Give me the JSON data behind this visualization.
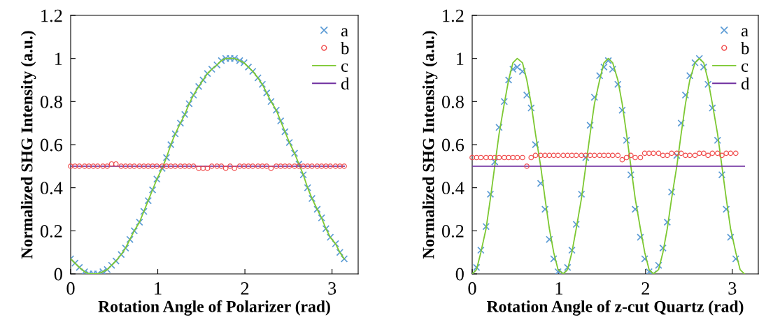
{
  "chart_data": [
    {
      "type": "scatter",
      "xlabel": "Rotation Angle of Polarizer (rad)",
      "ylabel": "Normalized SHG Intensity (a.u.)",
      "xlim": [
        0,
        3.3
      ],
      "ylim": [
        0,
        1.2
      ],
      "xticks": [
        0,
        1,
        2,
        3
      ],
      "yticks": [
        0,
        0.2,
        0.4,
        0.6,
        0.8,
        1,
        1.2
      ],
      "grid": false,
      "legend": "top right",
      "x": [
        0,
        0.05,
        0.1,
        0.16,
        0.21,
        0.26,
        0.31,
        0.37,
        0.42,
        0.47,
        0.52,
        0.58,
        0.63,
        0.68,
        0.73,
        0.79,
        0.84,
        0.89,
        0.94,
        0.99,
        1.05,
        1.1,
        1.15,
        1.2,
        1.26,
        1.31,
        1.36,
        1.41,
        1.47,
        1.52,
        1.57,
        1.62,
        1.68,
        1.73,
        1.78,
        1.83,
        1.88,
        1.94,
        1.99,
        2.04,
        2.09,
        2.15,
        2.2,
        2.25,
        2.3,
        2.36,
        2.41,
        2.46,
        2.51,
        2.57,
        2.62,
        2.67,
        2.72,
        2.77,
        2.83,
        2.88,
        2.93,
        2.98,
        3.04,
        3.09,
        3.14
      ],
      "series": [
        {
          "name": "a",
          "marker": "cross",
          "color": "#5b9bd5",
          "values": [
            0.07,
            0.05,
            0.03,
            0.01,
            0.0,
            0.0,
            0.0,
            0.01,
            0.02,
            0.04,
            0.06,
            0.09,
            0.12,
            0.16,
            0.2,
            0.24,
            0.29,
            0.34,
            0.39,
            0.44,
            0.49,
            0.54,
            0.6,
            0.65,
            0.7,
            0.74,
            0.79,
            0.83,
            0.87,
            0.9,
            0.93,
            0.95,
            0.97,
            0.99,
            1.0,
            1.0,
            1.0,
            0.99,
            0.98,
            0.96,
            0.94,
            0.91,
            0.88,
            0.84,
            0.8,
            0.76,
            0.71,
            0.66,
            0.61,
            0.56,
            0.51,
            0.46,
            0.4,
            0.35,
            0.3,
            0.26,
            0.21,
            0.17,
            0.14,
            0.1,
            0.07
          ]
        },
        {
          "name": "b",
          "marker": "circle",
          "color": "#f04848",
          "values": [
            0.5,
            0.5,
            0.5,
            0.5,
            0.5,
            0.5,
            0.5,
            0.5,
            0.5,
            0.51,
            0.51,
            0.5,
            0.5,
            0.5,
            0.5,
            0.5,
            0.5,
            0.5,
            0.5,
            0.5,
            0.5,
            0.5,
            0.5,
            0.5,
            0.5,
            0.5,
            0.5,
            0.5,
            0.49,
            0.49,
            0.49,
            0.5,
            0.5,
            0.5,
            0.49,
            0.5,
            0.49,
            0.5,
            0.5,
            0.5,
            0.5,
            0.5,
            0.5,
            0.5,
            0.49,
            0.5,
            0.5,
            0.5,
            0.5,
            0.5,
            0.5,
            0.5,
            0.5,
            0.5,
            0.5,
            0.5,
            0.5,
            0.5,
            0.5,
            0.5,
            0.5
          ]
        },
        {
          "name": "c",
          "type": "line",
          "marker": "none",
          "line_style": "solid",
          "color": "#7dc832",
          "values": [
            0.07,
            0.05,
            0.03,
            0.01,
            0.0,
            0.0,
            0.0,
            0.01,
            0.02,
            0.04,
            0.06,
            0.09,
            0.12,
            0.16,
            0.2,
            0.24,
            0.29,
            0.34,
            0.39,
            0.44,
            0.49,
            0.54,
            0.6,
            0.65,
            0.7,
            0.74,
            0.79,
            0.83,
            0.87,
            0.9,
            0.93,
            0.95,
            0.97,
            0.99,
            1.0,
            1.0,
            1.0,
            0.99,
            0.98,
            0.96,
            0.94,
            0.91,
            0.88,
            0.84,
            0.8,
            0.76,
            0.71,
            0.66,
            0.61,
            0.56,
            0.51,
            0.46,
            0.4,
            0.35,
            0.3,
            0.26,
            0.21,
            0.17,
            0.14,
            0.1,
            0.07
          ]
        },
        {
          "name": "d",
          "type": "line",
          "marker": "none",
          "line_style": "solid",
          "color": "#7030a0",
          "x": [
            0,
            3.14
          ],
          "values": [
            0.5,
            0.5
          ]
        }
      ]
    },
    {
      "type": "scatter",
      "xlabel": "Rotation Angle of z-cut Quartz (rad)",
      "ylabel": "Normalized SHG Intensity (a.u.)",
      "xlim": [
        0,
        3.3
      ],
      "ylim": [
        0,
        1.2
      ],
      "xticks": [
        0,
        1,
        2,
        3
      ],
      "yticks": [
        0,
        0.2,
        0.4,
        0.6,
        0.8,
        1,
        1.2
      ],
      "grid": false,
      "legend": "top right",
      "x": [
        0,
        0.05,
        0.1,
        0.16,
        0.21,
        0.26,
        0.31,
        0.37,
        0.42,
        0.47,
        0.52,
        0.58,
        0.63,
        0.68,
        0.73,
        0.79,
        0.84,
        0.89,
        0.94,
        0.99,
        1.05,
        1.1,
        1.15,
        1.2,
        1.26,
        1.31,
        1.36,
        1.41,
        1.47,
        1.52,
        1.57,
        1.62,
        1.68,
        1.73,
        1.78,
        1.83,
        1.88,
        1.94,
        1.99,
        2.04,
        2.09,
        2.15,
        2.2,
        2.25,
        2.3,
        2.36,
        2.41,
        2.46,
        2.51,
        2.57,
        2.62,
        2.67,
        2.72,
        2.77,
        2.83,
        2.88,
        2.93,
        2.98,
        3.04
      ],
      "series": [
        {
          "name": "a",
          "marker": "cross",
          "color": "#5b9bd5",
          "values": [
            0,
            0.03,
            0.11,
            0.22,
            0.37,
            0.52,
            0.68,
            0.8,
            0.9,
            0.95,
            0.96,
            0.94,
            0.83,
            0.77,
            0.6,
            0.42,
            0.3,
            0.16,
            0.07,
            0.01,
            0,
            0.03,
            0.11,
            0.23,
            0.37,
            0.54,
            0.69,
            0.82,
            0.92,
            0.96,
            0.99,
            0.95,
            0.88,
            0.76,
            0.62,
            0.46,
            0.3,
            0.17,
            0.07,
            0.01,
            0,
            0.04,
            0.12,
            0.24,
            0.38,
            0.55,
            0.7,
            0.83,
            0.92,
            0.98,
            1.0,
            0.96,
            0.88,
            0.77,
            0.62,
            0.46,
            0.3,
            0.17,
            0.07
          ]
        },
        {
          "name": "b",
          "marker": "circle",
          "color": "#f04848",
          "values": [
            0.54,
            0.54,
            0.54,
            0.54,
            0.54,
            0.54,
            0.54,
            0.54,
            0.54,
            0.54,
            0.54,
            0.54,
            0.5,
            0.54,
            0.55,
            0.55,
            0.55,
            0.55,
            0.55,
            0.55,
            0.55,
            0.55,
            0.55,
            0.55,
            0.55,
            0.55,
            0.55,
            0.55,
            0.55,
            0.55,
            0.55,
            0.55,
            0.55,
            0.53,
            0.54,
            0.55,
            0.54,
            0.54,
            0.56,
            0.56,
            0.56,
            0.56,
            0.55,
            0.55,
            0.56,
            0.56,
            0.56,
            0.55,
            0.55,
            0.55,
            0.56,
            0.56,
            0.55,
            0.56,
            0.56,
            0.55,
            0.56,
            0.56,
            0.56
          ]
        },
        {
          "name": "c",
          "type": "line",
          "marker": "none",
          "line_style": "solid",
          "color": "#7dc832",
          "x": [
            0,
            0.05,
            0.1,
            0.16,
            0.21,
            0.26,
            0.31,
            0.37,
            0.42,
            0.47,
            0.52,
            0.58,
            0.63,
            0.68,
            0.73,
            0.79,
            0.84,
            0.89,
            0.94,
            0.99,
            1.05,
            1.1,
            1.15,
            1.2,
            1.26,
            1.31,
            1.36,
            1.41,
            1.47,
            1.52,
            1.57,
            1.62,
            1.68,
            1.73,
            1.78,
            1.83,
            1.88,
            1.94,
            1.99,
            2.04,
            2.09,
            2.15,
            2.2,
            2.25,
            2.3,
            2.36,
            2.41,
            2.46,
            2.51,
            2.57,
            2.62,
            2.67,
            2.72,
            2.77,
            2.83,
            2.88,
            2.93,
            2.98,
            3.04,
            3.09,
            3.14
          ],
          "values": [
            0,
            0.02,
            0.1,
            0.21,
            0.35,
            0.5,
            0.65,
            0.79,
            0.9,
            0.98,
            1,
            0.98,
            0.9,
            0.79,
            0.65,
            0.5,
            0.35,
            0.21,
            0.1,
            0.02,
            0,
            0.02,
            0.1,
            0.21,
            0.35,
            0.5,
            0.65,
            0.79,
            0.9,
            0.98,
            1,
            0.98,
            0.9,
            0.79,
            0.65,
            0.5,
            0.35,
            0.21,
            0.1,
            0.02,
            0,
            0.02,
            0.1,
            0.21,
            0.35,
            0.5,
            0.65,
            0.79,
            0.9,
            0.98,
            1,
            0.98,
            0.9,
            0.79,
            0.65,
            0.5,
            0.35,
            0.21,
            0.1,
            0.02,
            0
          ]
        },
        {
          "name": "d",
          "type": "line",
          "marker": "none",
          "line_style": "solid",
          "color": "#7030a0",
          "x": [
            0,
            3.14
          ],
          "values": [
            0.5,
            0.5
          ]
        }
      ]
    }
  ]
}
